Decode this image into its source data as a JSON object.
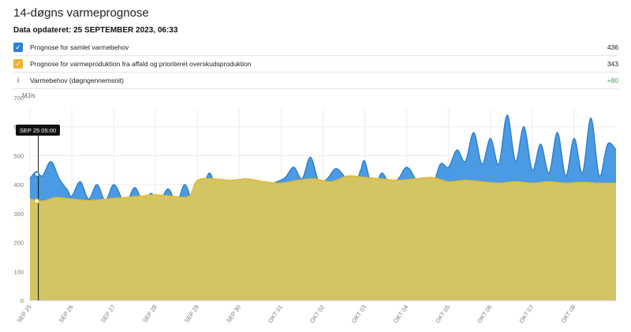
{
  "title": "14-døgns varmeprognose",
  "updated": "Data opdateret: 25 SEPTEMBER 2023, 06:33",
  "legend": [
    {
      "label": "Prognose for samlet varmebehov",
      "value": "436",
      "color": "#2f80d0",
      "checked": true,
      "icon": "checkbox-checked-icon"
    },
    {
      "label": "Prognose for varmeproduktion fra affald og prioriteret overskudsproduktion",
      "value": "343",
      "color": "#efb233",
      "checked": true,
      "icon": "checkbox-checked-icon"
    },
    {
      "label": "Varmebehov (døgngennemsnit)",
      "value": "+80",
      "color": "#3aa34a",
      "checked": false,
      "icon": "info-icon"
    }
  ],
  "chart_data": {
    "type": "area",
    "unit_label": "MJ/s",
    "ylim": [
      0,
      700
    ],
    "yticks": [
      0,
      100,
      200,
      300,
      400,
      500,
      600,
      700
    ],
    "xlim": [
      0,
      14
    ],
    "xticks": [
      "SEP 25",
      "SEP 26",
      "SEP 27",
      "SEP 28",
      "SEP 29",
      "SEP 30",
      "OKT 01",
      "OKT 02",
      "OKT 03",
      "OKT 04",
      "OKT 05",
      "OKT 06",
      "OKT 07",
      "OKT 08"
    ],
    "cursor": {
      "label": "SEP 25 05:00",
      "x": 0.2,
      "values": [
        436,
        343
      ]
    },
    "series": [
      {
        "name": "Prognose for samlet varmebehov",
        "color": "#4a9be3",
        "stroke": "#2f7dd0",
        "points": [
          [
            0,
            420
          ],
          [
            0.15,
            445
          ],
          [
            0.3,
            430
          ],
          [
            0.5,
            480
          ],
          [
            0.7,
            420
          ],
          [
            0.9,
            380
          ],
          [
            1.0,
            360
          ],
          [
            1.2,
            410
          ],
          [
            1.4,
            350
          ],
          [
            1.6,
            400
          ],
          [
            1.8,
            345
          ],
          [
            2.0,
            400
          ],
          [
            2.2,
            350
          ],
          [
            2.3,
            330
          ],
          [
            2.5,
            390
          ],
          [
            2.7,
            340
          ],
          [
            2.9,
            370
          ],
          [
            3.05,
            330
          ],
          [
            3.3,
            385
          ],
          [
            3.5,
            335
          ],
          [
            3.7,
            400
          ],
          [
            3.9,
            335
          ],
          [
            4.1,
            370
          ],
          [
            4.3,
            440
          ],
          [
            4.5,
            340
          ],
          [
            4.7,
            410
          ],
          [
            4.9,
            380
          ],
          [
            5.1,
            420
          ],
          [
            5.3,
            400
          ],
          [
            5.5,
            410
          ],
          [
            5.7,
            400
          ],
          [
            5.9,
            410
          ],
          [
            6.1,
            425
          ],
          [
            6.3,
            460
          ],
          [
            6.5,
            420
          ],
          [
            6.7,
            495
          ],
          [
            6.9,
            410
          ],
          [
            7.1,
            420
          ],
          [
            7.3,
            455
          ],
          [
            7.5,
            430
          ],
          [
            7.7,
            380
          ],
          [
            7.9,
            450
          ],
          [
            8.0,
            480
          ],
          [
            8.2,
            380
          ],
          [
            8.4,
            440
          ],
          [
            8.6,
            400
          ],
          [
            8.8,
            420
          ],
          [
            9.0,
            460
          ],
          [
            9.2,
            420
          ],
          [
            9.4,
            350
          ],
          [
            9.6,
            380
          ],
          [
            9.8,
            470
          ],
          [
            10.0,
            460
          ],
          [
            10.2,
            520
          ],
          [
            10.4,
            480
          ],
          [
            10.6,
            580
          ],
          [
            10.8,
            470
          ],
          [
            11.0,
            560
          ],
          [
            11.2,
            470
          ],
          [
            11.4,
            640
          ],
          [
            11.6,
            480
          ],
          [
            11.8,
            600
          ],
          [
            12.0,
            450
          ],
          [
            12.2,
            540
          ],
          [
            12.4,
            440
          ],
          [
            12.6,
            580
          ],
          [
            12.8,
            430
          ],
          [
            13.0,
            560
          ],
          [
            13.2,
            440
          ],
          [
            13.4,
            630
          ],
          [
            13.6,
            430
          ],
          [
            13.8,
            540
          ],
          [
            14.0,
            520
          ]
        ]
      },
      {
        "name": "Prognose for varmeproduktion fra affald og prioriteret overskudsproduktion",
        "color": "#d3c464",
        "stroke": "#e3b934",
        "points": [
          [
            0,
            350
          ],
          [
            0.3,
            343
          ],
          [
            0.6,
            355
          ],
          [
            1.0,
            350
          ],
          [
            1.4,
            345
          ],
          [
            1.8,
            350
          ],
          [
            2.2,
            355
          ],
          [
            2.6,
            360
          ],
          [
            3.0,
            365
          ],
          [
            3.4,
            360
          ],
          [
            3.8,
            360
          ],
          [
            4.0,
            415
          ],
          [
            4.4,
            420
          ],
          [
            4.8,
            415
          ],
          [
            5.2,
            420
          ],
          [
            5.6,
            410
          ],
          [
            6.0,
            405
          ],
          [
            6.4,
            415
          ],
          [
            6.8,
            420
          ],
          [
            7.2,
            410
          ],
          [
            7.6,
            430
          ],
          [
            8.0,
            425
          ],
          [
            8.4,
            420
          ],
          [
            8.8,
            415
          ],
          [
            9.2,
            420
          ],
          [
            9.6,
            425
          ],
          [
            10.0,
            410
          ],
          [
            10.4,
            415
          ],
          [
            10.8,
            410
          ],
          [
            11.2,
            405
          ],
          [
            11.6,
            410
          ],
          [
            12.0,
            405
          ],
          [
            12.4,
            410
          ],
          [
            12.8,
            405
          ],
          [
            13.2,
            408
          ],
          [
            13.6,
            405
          ],
          [
            14.0,
            405
          ]
        ]
      }
    ]
  }
}
